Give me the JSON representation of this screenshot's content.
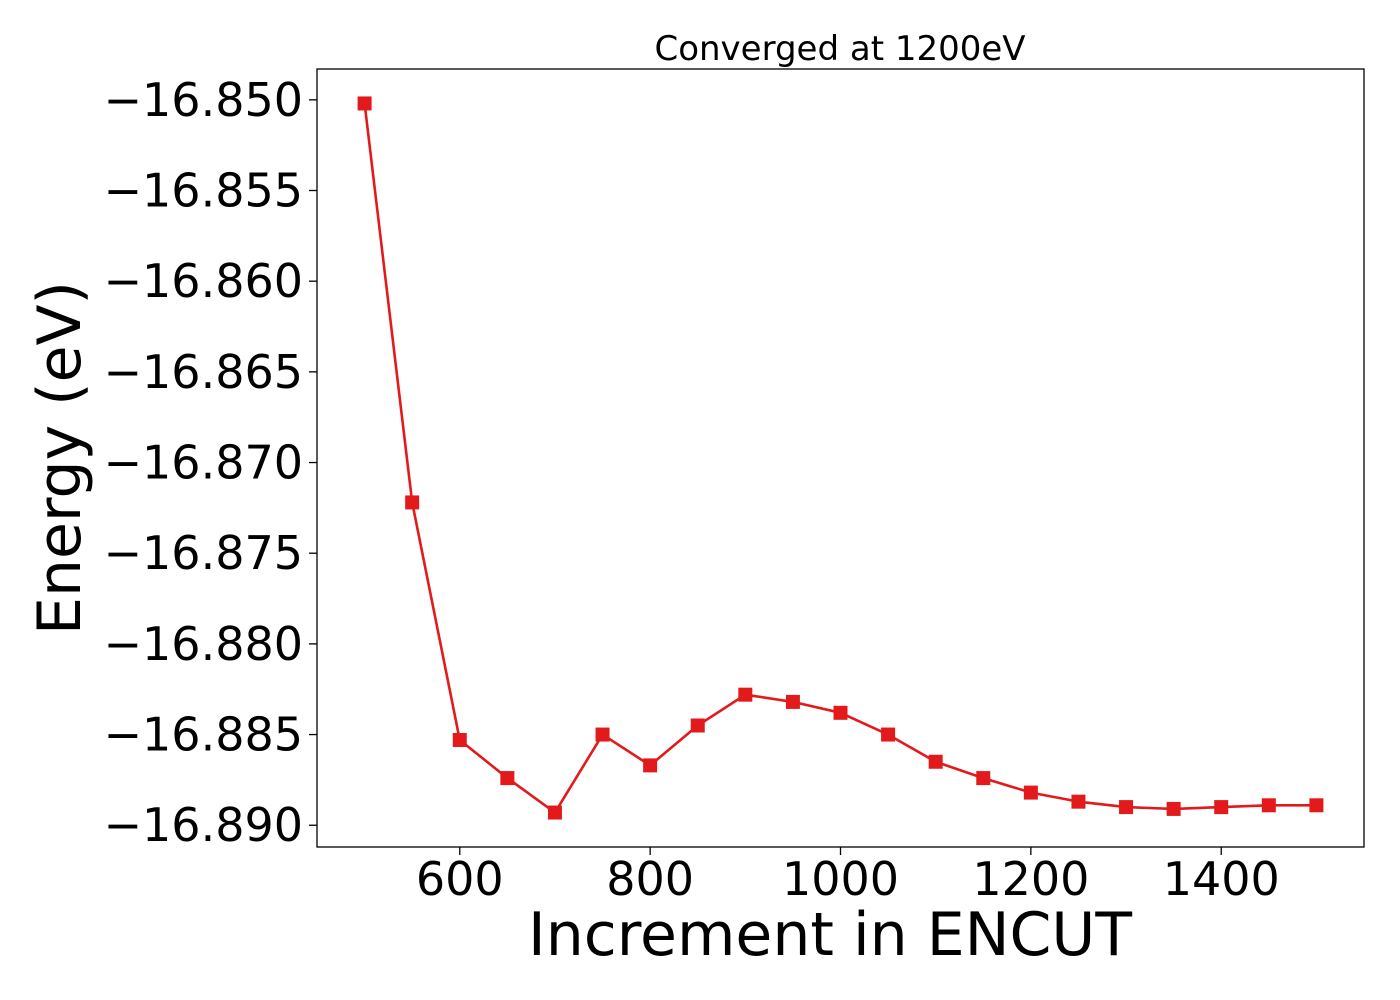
{
  "chart_data": {
    "type": "line",
    "title": "Converged at 1200eV",
    "xlabel": "Increment in ENCUT",
    "ylabel": "Energy (eV)",
    "xlim": [
      450,
      1550
    ],
    "ylim": [
      -16.8912,
      -16.8483
    ],
    "xticks": [
      600,
      800,
      1000,
      1200,
      1400
    ],
    "xtick_labels": [
      "600",
      "800",
      "1000",
      "1200",
      "1400"
    ],
    "yticks": [
      -16.85,
      -16.855,
      -16.86,
      -16.865,
      -16.87,
      -16.875,
      -16.88,
      -16.885,
      -16.89
    ],
    "ytick_labels": [
      "−16.850",
      "−16.855",
      "−16.860",
      "−16.865",
      "−16.870",
      "−16.875",
      "−16.880",
      "−16.885",
      "−16.890"
    ],
    "grid": false,
    "series": [
      {
        "color": "#e31a1c",
        "marker": "square",
        "x": [
          500,
          550,
          600,
          650,
          700,
          750,
          800,
          850,
          900,
          950,
          1000,
          1050,
          1100,
          1150,
          1200,
          1250,
          1300,
          1350,
          1400,
          1450,
          1500
        ],
        "y": [
          -16.8502,
          -16.8722,
          -16.8853,
          -16.8874,
          -16.8893,
          -16.885,
          -16.8867,
          -16.8845,
          -16.8828,
          -16.8832,
          -16.8838,
          -16.885,
          -16.8865,
          -16.8874,
          -16.8882,
          -16.8887,
          -16.889,
          -16.8891,
          -16.889,
          -16.8889,
          -16.8889
        ]
      }
    ]
  }
}
